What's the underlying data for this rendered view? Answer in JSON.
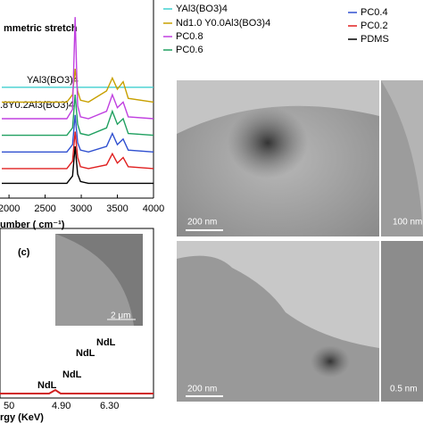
{
  "chart_data": {
    "type": "line",
    "annotations": [
      "mmetric stretch",
      "YAl3(BO3)4",
      ".8Y0.2Al3(BO3)4"
    ],
    "x_label": "umber ( cm⁻¹)",
    "x": [
      1900,
      2800,
      2880,
      2915,
      2950,
      2990,
      3100,
      3350,
      3430,
      3500,
      3580,
      3650,
      4000
    ],
    "xlim": [
      1900,
      4000
    ],
    "xticks": [
      2000,
      2500,
      3000,
      3500,
      4000
    ],
    "ylim": [
      0,
      10
    ],
    "series": [
      {
        "name": "YAl3(BO3)4",
        "color": "#40d0d0",
        "values": [
          6.0,
          6.0,
          6.0,
          6.0,
          6.0,
          6.0,
          6.0,
          6.0,
          6.0,
          6.0,
          6.0,
          6.0,
          6.0
        ]
      },
      {
        "name": "Nd1.0 Y0.0Al3(BO3)4",
        "color": "#c8a000",
        "values": [
          5.2,
          5.2,
          5.6,
          7.0,
          5.8,
          5.3,
          5.2,
          5.8,
          6.5,
          5.9,
          6.3,
          5.4,
          5.2
        ]
      },
      {
        "name": "PC0.8",
        "color": "#c040e0",
        "values": [
          4.3,
          4.3,
          4.8,
          9.8,
          5.0,
          4.4,
          4.3,
          4.7,
          5.6,
          4.9,
          5.2,
          4.4,
          4.3
        ]
      },
      {
        "name": "PC0.6",
        "color": "#20a060",
        "values": [
          3.4,
          3.4,
          3.8,
          5.6,
          4.0,
          3.5,
          3.4,
          3.8,
          4.7,
          4.0,
          4.3,
          3.5,
          3.4
        ]
      },
      {
        "name": "PC0.4",
        "color": "#3050d0",
        "values": [
          2.5,
          2.5,
          2.9,
          4.5,
          3.0,
          2.6,
          2.5,
          2.8,
          3.5,
          2.9,
          3.2,
          2.6,
          2.5
        ]
      },
      {
        "name": "PC0.2",
        "color": "#e02020",
        "values": [
          1.6,
          1.6,
          2.0,
          3.6,
          2.2,
          1.7,
          1.6,
          1.8,
          2.4,
          1.9,
          2.2,
          1.7,
          1.6
        ]
      },
      {
        "name": "PDMS",
        "color": "#000000",
        "values": [
          0.8,
          0.8,
          1.2,
          2.8,
          1.3,
          0.9,
          0.8,
          0.8,
          0.8,
          0.8,
          0.8,
          0.8,
          0.8
        ]
      }
    ]
  },
  "eds": {
    "panel_label": "(c)",
    "inset_scale": "2 μm",
    "peaks": [
      "NdL",
      "NdL",
      "NdL",
      "NdL"
    ],
    "xticks": [
      "50",
      "4.90",
      "6.30"
    ],
    "x_label": "rgy (KeV)"
  },
  "micrographs": [
    {
      "scale": "200 nm"
    },
    {
      "scale": "100 nm"
    },
    {
      "scale": "200 nm"
    },
    {
      "scale": "0.5 nm"
    }
  ]
}
